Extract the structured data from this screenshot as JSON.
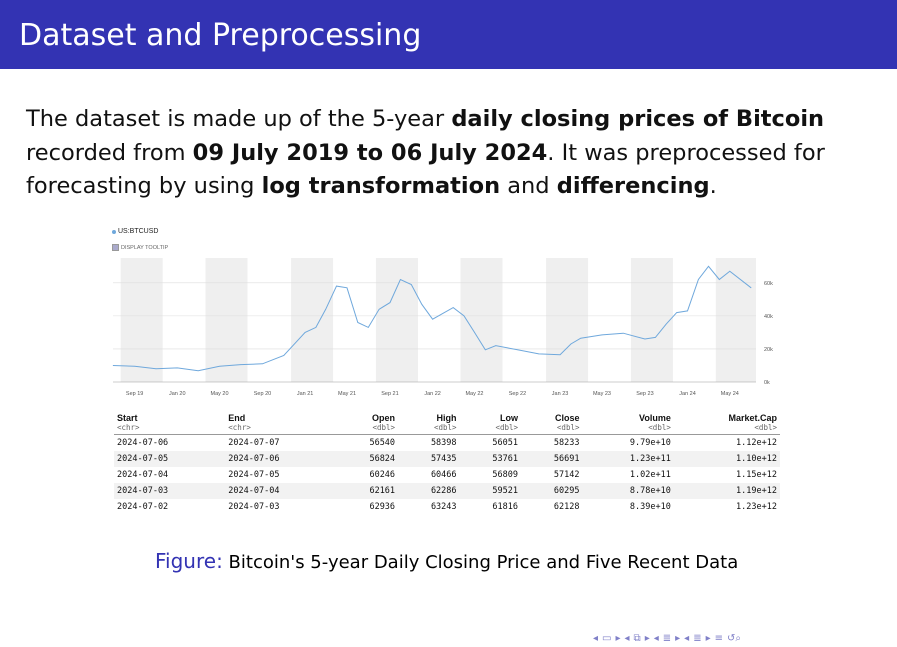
{
  "slide": {
    "title": "Dataset and Preprocessing",
    "para": {
      "t1": "The dataset is made up of the 5-year ",
      "b1": "daily closing prices of Bitcoin",
      "t2": " recorded from ",
      "b2": "09 July 2019 to 06 July 2024",
      "t3": ". It was preprocessed for forecasting by using ",
      "b3": "log transformation",
      "t4": " and ",
      "b4": "differencing",
      "t5": "."
    },
    "caption_label": "Figure:",
    "caption_text": " Bitcoin's 5-year Daily Closing Price and Five Recent Data"
  },
  "chart_ui": {
    "legend": "US:BTCUSD",
    "tooltip_toggle": "DISPLAY TOOLTIP"
  },
  "chart_data": {
    "type": "line",
    "series": [
      {
        "name": "US:BTCUSD",
        "color": "#6fa8dc",
        "x": [
          "2019-07",
          "2019-09",
          "2019-11",
          "2020-01",
          "2020-03",
          "2020-05",
          "2020-07",
          "2020-09",
          "2020-11",
          "2021-01",
          "2021-02",
          "2021-03",
          "2021-04",
          "2021-05",
          "2021-06",
          "2021-07",
          "2021-08",
          "2021-09",
          "2021-10",
          "2021-11",
          "2021-12",
          "2022-01",
          "2022-03",
          "2022-04",
          "2022-05",
          "2022-06",
          "2022-07",
          "2022-09",
          "2022-11",
          "2023-01",
          "2023-02",
          "2023-03",
          "2023-05",
          "2023-07",
          "2023-09",
          "2023-10",
          "2023-11",
          "2023-12",
          "2024-01",
          "2024-02",
          "2024-03",
          "2024-04",
          "2024-05",
          "2024-07"
        ],
        "y": [
          10000,
          9500,
          8000,
          8500,
          6800,
          9500,
          10500,
          11000,
          16000,
          30000,
          33000,
          44000,
          58000,
          57000,
          36000,
          33000,
          44000,
          48000,
          62000,
          59000,
          47000,
          38000,
          45000,
          40000,
          30000,
          19500,
          22000,
          19500,
          17000,
          16500,
          23000,
          26500,
          28500,
          29500,
          26000,
          27000,
          35000,
          42000,
          43000,
          62000,
          70000,
          62000,
          67000,
          57000
        ]
      }
    ],
    "x_ticks": [
      "Sep 19",
      "Jan 20",
      "May 20",
      "Sep 20",
      "Jan 21",
      "May 21",
      "Sep 21",
      "Jan 22",
      "May 22",
      "Sep 22",
      "Jan 23",
      "May 23",
      "Sep 23",
      "Jan 24",
      "May 24"
    ],
    "y_ticks": [
      "0k",
      "20k",
      "40k",
      "60k"
    ],
    "ylim": [
      0,
      75000
    ]
  },
  "table": {
    "columns": [
      {
        "name": "Start",
        "type": "<chr>",
        "align": "l"
      },
      {
        "name": "End",
        "type": "<chr>",
        "align": "l"
      },
      {
        "name": "Open",
        "type": "<dbl>",
        "align": "r"
      },
      {
        "name": "High",
        "type": "<dbl>",
        "align": "r"
      },
      {
        "name": "Low",
        "type": "<dbl>",
        "align": "r"
      },
      {
        "name": "Close",
        "type": "<dbl>",
        "align": "r"
      },
      {
        "name": "Volume",
        "type": "<dbl>",
        "align": "r"
      },
      {
        "name": "Market.Cap",
        "type": "<dbl>",
        "align": "r"
      }
    ],
    "rows": [
      [
        "2024-07-06",
        "2024-07-07",
        "56540",
        "58398",
        "56051",
        "58233",
        "9.79e+10",
        "1.12e+12"
      ],
      [
        "2024-07-05",
        "2024-07-06",
        "56824",
        "57435",
        "53761",
        "56691",
        "1.23e+11",
        "1.10e+12"
      ],
      [
        "2024-07-04",
        "2024-07-05",
        "60246",
        "60466",
        "56809",
        "57142",
        "1.02e+11",
        "1.15e+12"
      ],
      [
        "2024-07-03",
        "2024-07-04",
        "62161",
        "62286",
        "59521",
        "60295",
        "8.78e+10",
        "1.19e+12"
      ],
      [
        "2024-07-02",
        "2024-07-03",
        "62936",
        "63243",
        "61816",
        "62128",
        "8.39e+10",
        "1.23e+12"
      ]
    ]
  },
  "nav_icons": [
    "nav-prev-frame",
    "nav-next-frame",
    "nav-prev-subsection",
    "nav-next-subsection",
    "nav-prev-section",
    "nav-next-section",
    "nav-menu",
    "nav-search"
  ]
}
